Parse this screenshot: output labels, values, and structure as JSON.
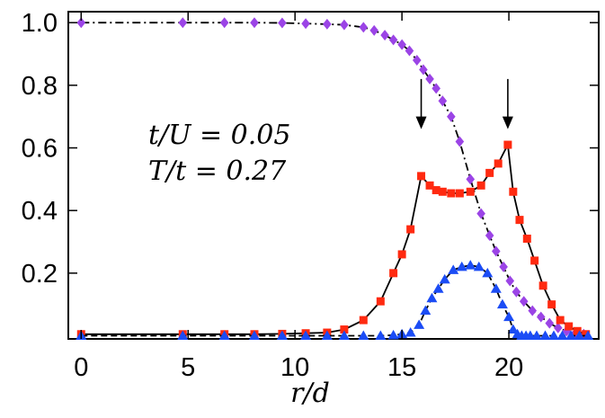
{
  "chart_data": {
    "type": "line",
    "title": "",
    "xlabel": "r/d",
    "ylabel": "",
    "xlim": [
      -0.6,
      24.2
    ],
    "ylim": [
      -0.01,
      1.035
    ],
    "xticks": [
      0,
      5,
      10,
      15,
      20
    ],
    "xtick_labels": [
      "0",
      "5",
      "10",
      "15",
      "20"
    ],
    "yticks": [
      0.2,
      0.4,
      0.6,
      0.8,
      1.0
    ],
    "ytick_labels": [
      "0.2",
      "0.4",
      "0.6",
      "0.8",
      "1.0"
    ],
    "grid": false,
    "legend": "none",
    "annotations": [
      {
        "text": "t/U = 0.05"
      },
      {
        "text": "T/t = 0.27"
      }
    ],
    "arrows": [
      {
        "x": 15.9,
        "y_from": 0.82,
        "y_to": 0.66
      },
      {
        "x": 19.95,
        "y_from": 0.82,
        "y_to": 0.66
      }
    ],
    "series": [
      {
        "marker": "diamond",
        "color": "#9b44e6",
        "line_style": "dashdot",
        "x": [
          0,
          4.75,
          6.7,
          8.1,
          9.4,
          10.5,
          11.5,
          12.3,
          13.2,
          13.7,
          14.2,
          14.6,
          15.0,
          15.35,
          15.7,
          16.0,
          16.3,
          16.6,
          16.9,
          17.3,
          17.7,
          18.2,
          18.7,
          19.1,
          19.4,
          19.75,
          20.05,
          20.35,
          20.7,
          21.1,
          21.5,
          21.9,
          22.3,
          22.7,
          23.1,
          23.5
        ],
        "y": [
          1.0,
          1.0,
          1.0,
          1.0,
          0.999,
          0.997,
          0.995,
          0.993,
          0.985,
          0.975,
          0.96,
          0.945,
          0.93,
          0.91,
          0.88,
          0.85,
          0.82,
          0.79,
          0.75,
          0.7,
          0.62,
          0.5,
          0.39,
          0.32,
          0.27,
          0.22,
          0.175,
          0.14,
          0.11,
          0.08,
          0.06,
          0.04,
          0.025,
          0.015,
          0.008,
          0.005
        ]
      },
      {
        "marker": "square",
        "color": "#ff2a10",
        "line_style": "solid",
        "x": [
          0,
          4.75,
          6.7,
          8.1,
          9.4,
          10.5,
          11.5,
          12.3,
          13.2,
          14.0,
          14.6,
          15.0,
          15.4,
          15.9,
          16.3,
          16.6,
          16.9,
          17.3,
          17.7,
          18.2,
          18.7,
          19.1,
          19.5,
          19.95,
          20.2,
          20.5,
          20.85,
          21.2,
          21.6,
          22.0,
          22.4,
          22.8,
          23.2,
          23.6
        ],
        "y": [
          0.005,
          0.005,
          0.005,
          0.005,
          0.006,
          0.008,
          0.01,
          0.02,
          0.05,
          0.11,
          0.2,
          0.26,
          0.34,
          0.51,
          0.48,
          0.465,
          0.46,
          0.455,
          0.455,
          0.46,
          0.48,
          0.52,
          0.55,
          0.61,
          0.46,
          0.37,
          0.31,
          0.24,
          0.16,
          0.1,
          0.05,
          0.03,
          0.015,
          0.005
        ]
      },
      {
        "marker": "triangle",
        "color": "#1b4cf5",
        "line_style": "dashed",
        "x": [
          0,
          4.75,
          6.7,
          8.1,
          9.4,
          10.5,
          11.5,
          12.3,
          13.2,
          14.0,
          14.6,
          15.0,
          15.4,
          15.8,
          16.1,
          16.4,
          16.7,
          17.0,
          17.4,
          17.8,
          18.2,
          18.6,
          19.0,
          19.4,
          19.7,
          20.0,
          20.2,
          20.4,
          20.6,
          20.8,
          21.0,
          21.3,
          21.7,
          22.1,
          22.5,
          22.9,
          23.3,
          23.7
        ],
        "y": [
          0.0,
          0.0,
          0.0,
          0.0,
          0.0,
          0.0,
          0.0,
          0.0,
          0.0,
          0.0,
          0.002,
          0.005,
          0.01,
          0.035,
          0.08,
          0.12,
          0.15,
          0.18,
          0.21,
          0.22,
          0.225,
          0.22,
          0.2,
          0.15,
          0.1,
          0.06,
          0.02,
          0.005,
          0.0,
          0.0,
          0.0,
          0.0,
          0.0,
          0.0,
          0.0,
          0.0,
          0.0,
          0.0
        ]
      }
    ]
  }
}
